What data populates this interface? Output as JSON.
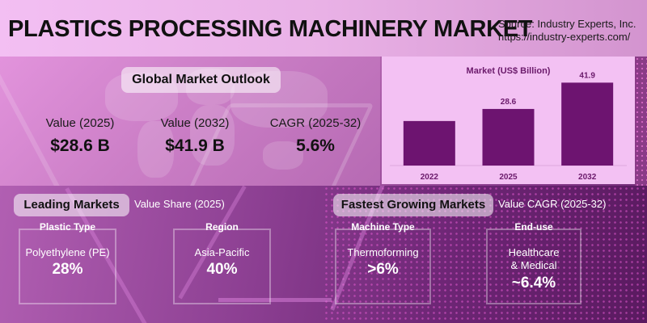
{
  "header": {
    "title": "PLASTICS PROCESSING MACHINERY MARKET",
    "source_line1": "Source: Industry Experts, Inc.",
    "source_line2": "https://industry-experts.com/"
  },
  "outlook": {
    "title": "Global Market Outlook",
    "kpis": [
      {
        "label": "Value (2025)",
        "value": "$28.6 B"
      },
      {
        "label": "Value (2032)",
        "value": "$41.9 B"
      },
      {
        "label": "CAGR (2025-32)",
        "value": "5.6%"
      }
    ]
  },
  "chart_data": {
    "type": "bar",
    "title": "Market  (US$ Billion)",
    "categories": [
      "2022",
      "2025",
      "2032"
    ],
    "values": [
      22.5,
      28.6,
      41.9
    ],
    "data_labels": [
      "",
      "28.6",
      "41.9"
    ],
    "xlabel": "",
    "ylabel": "",
    "ylim": [
      0,
      45
    ],
    "grid": false,
    "colors": {
      "bar": "#6d1470",
      "label": "#6b1a6b",
      "background": "#f3c1f3"
    }
  },
  "leading": {
    "title": "Leading Markets",
    "subtitle": "Value Share (2025)",
    "cards": [
      {
        "header": "Plastic Type",
        "name": "Polyethylene (PE)",
        "value": "28%"
      },
      {
        "header": "Region",
        "name": "Asia-Pacific",
        "value": "40%"
      }
    ]
  },
  "fastest": {
    "title": "Fastest Growing Markets",
    "subtitle": "Value CAGR (2025-32)",
    "cards": [
      {
        "header": "Machine Type",
        "name": "Thermoforming",
        "value": ">6%"
      },
      {
        "header": "End-use",
        "name": "Healthcare\n& Medical",
        "value": "~6.4%"
      }
    ]
  }
}
